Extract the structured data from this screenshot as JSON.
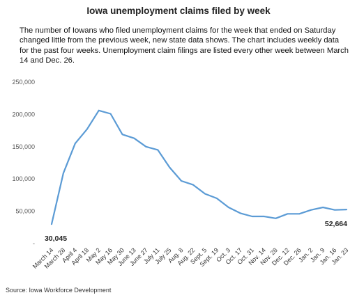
{
  "title": "Iowa unemployment claims filed by week",
  "subtitle": "The number of Iowans who filed unemployment claims for the week that ended on Saturday changed little from the previous week, new state data shows. The chart includes weekly data for the past four weeks. Unemployment claim filings are listed every other week between March 14 and Dec. 26.",
  "source": "Source: Iowa Workforce Development",
  "chart_data": {
    "type": "line",
    "title": "Iowa unemployment claims filed by week",
    "xlabel": "",
    "ylabel": "",
    "ylim": [
      0,
      250000
    ],
    "yticks": [
      0,
      50000,
      100000,
      150000,
      200000,
      250000
    ],
    "ytick_labels": [
      "-",
      "50,000",
      "100,000",
      "150,000",
      "200,000",
      "250,000"
    ],
    "grid": false,
    "line_color": "#5b9bd5",
    "x": [
      "March 14",
      "March 28",
      "April 4",
      "April 18",
      "May 2",
      "May 16",
      "May 30",
      "June 13",
      "June 27",
      "July 11",
      "July 25",
      "Aug. 8",
      "Aug. 22",
      "Sept. 5",
      "Sept. 19",
      "Oct. 3",
      "Oct. 17",
      "Oct. 31",
      "Nov. 14",
      "Nov. 28",
      "Dec. 12",
      "Dec. 26",
      "Jan. 2",
      "Jan. 9",
      "Jan. 16",
      "Jan. 23"
    ],
    "values": [
      30045,
      109000,
      155000,
      177000,
      206000,
      201000,
      169000,
      163000,
      150000,
      145000,
      118000,
      97000,
      91000,
      77000,
      70000,
      56000,
      47000,
      42000,
      42000,
      39000,
      46000,
      46000,
      52000,
      56000,
      52000,
      52664
    ],
    "annotations": [
      {
        "index": 0,
        "text": "30,045"
      },
      {
        "index": 25,
        "text": "52,664"
      }
    ]
  }
}
